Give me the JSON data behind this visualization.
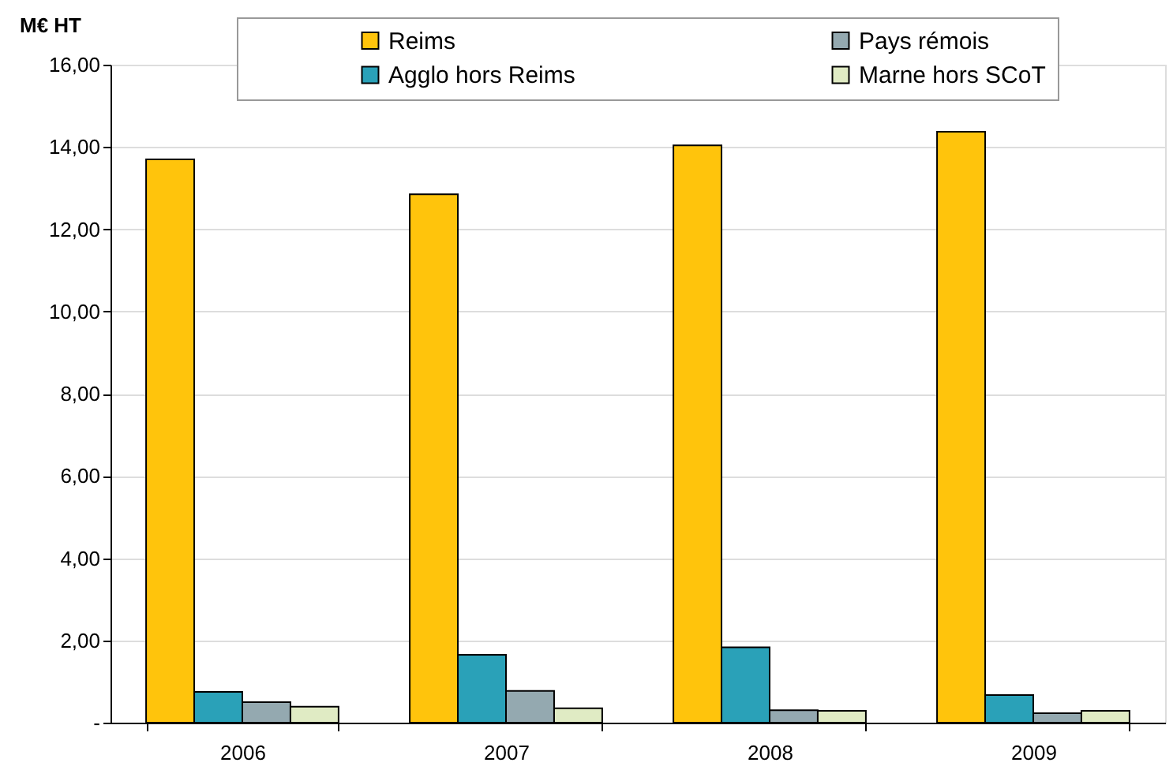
{
  "chart_data": {
    "type": "bar",
    "ylabel": "M€ HT",
    "categories": [
      "2006",
      "2007",
      "2008",
      "2009"
    ],
    "series": [
      {
        "name": "Reims",
        "color": "#ffc40c",
        "values": [
          13.7,
          12.85,
          14.04,
          14.37
        ]
      },
      {
        "name": "Agglo hors Reims",
        "color": "#2aa1b8",
        "values": [
          0.75,
          1.65,
          1.83,
          0.67
        ]
      },
      {
        "name": "Pays rémois",
        "color": "#94a9b0",
        "values": [
          0.5,
          0.77,
          0.3,
          0.23
        ]
      },
      {
        "name": "Marne hors SCoT",
        "color": "#e0ebc4",
        "values": [
          0.39,
          0.35,
          0.29,
          0.29
        ]
      }
    ],
    "ylim": [
      0,
      16
    ],
    "yticks": [
      {
        "value": 0,
        "label": "-"
      },
      {
        "value": 2,
        "label": "2,00"
      },
      {
        "value": 4,
        "label": "4,00"
      },
      {
        "value": 6,
        "label": "6,00"
      },
      {
        "value": 8,
        "label": "8,00"
      },
      {
        "value": 10,
        "label": "10,00"
      },
      {
        "value": 12,
        "label": "12,00"
      },
      {
        "value": 14,
        "label": "14,00"
      },
      {
        "value": 16,
        "label": "16,00"
      }
    ],
    "grid": "y",
    "legend": "top"
  }
}
